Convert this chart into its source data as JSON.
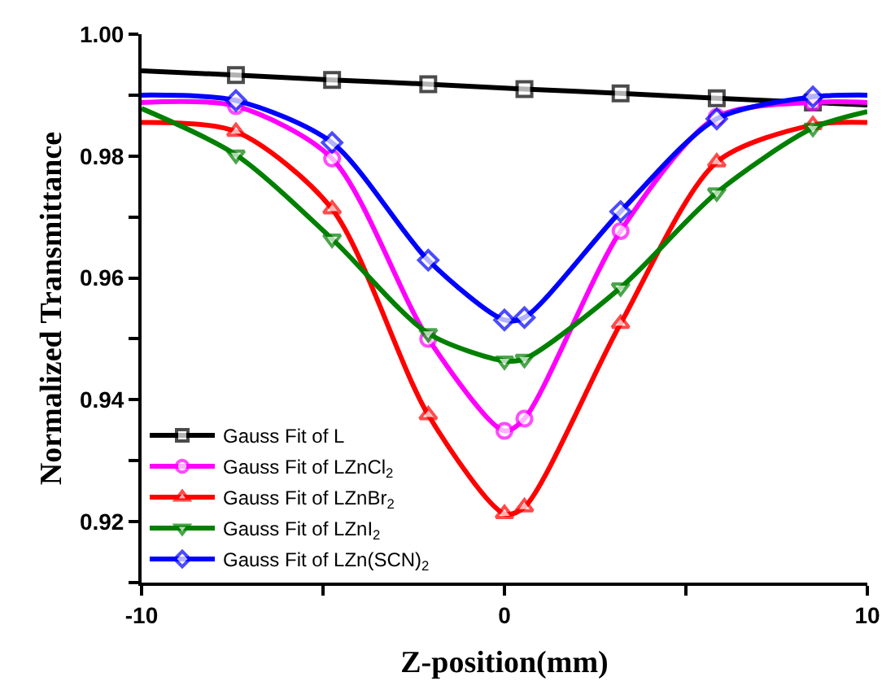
{
  "chart_data": {
    "type": "line",
    "xlabel": "Z-position(mm)",
    "ylabel": "Normalized Transmittance",
    "xlim": [
      -10,
      10
    ],
    "xticks": [
      -10,
      {
        "value": -5,
        "label": null
      },
      0,
      {
        "value": 5,
        "label": null
      },
      10
    ],
    "ylim": [
      0.91,
      1.0
    ],
    "yticks": [
      {
        "value": 0.91,
        "label": null
      },
      0.92,
      {
        "value": 0.93,
        "label": null
      },
      0.94,
      {
        "value": 0.95,
        "label": null
      },
      0.96,
      {
        "value": 0.97,
        "label": null
      },
      0.98,
      {
        "value": 0.99,
        "label": null
      },
      {
        "value": 1.0,
        "label": "1.00"
      }
    ],
    "legend": "bottom left",
    "series": [
      {
        "name": "Gauss Fit of L",
        "color": "#000000",
        "marker": "square",
        "x": [
          -10,
          -7.4,
          -4.75,
          -2.1,
          0.55,
          3.2,
          5.85,
          8.5,
          10
        ],
        "values": [
          0.994,
          0.9933,
          0.9925,
          0.9918,
          0.991,
          0.9903,
          0.9895,
          0.9888,
          0.9884
        ]
      },
      {
        "name": "Gauss Fit of LZnCl$_{2}$",
        "color": "#ff00ff",
        "marker": "circle",
        "x": [
          -10,
          -7.4,
          -4.75,
          -2.1,
          0,
          0.55,
          3.2,
          5.85,
          8.5,
          10
        ],
        "values": [
          0.9888,
          0.9882,
          0.9796,
          0.95,
          0.9349,
          0.9369,
          0.9677,
          0.9864,
          0.9888,
          0.9888
        ]
      },
      {
        "name": "Gauss Fit of LZnBr$_{2}$",
        "color": "#ff0000",
        "marker": "triangle",
        "x": [
          -10,
          -7.4,
          -4.75,
          -2.1,
          0,
          0.55,
          3.2,
          5.85,
          8.5,
          10
        ],
        "values": [
          0.9855,
          0.984,
          0.9713,
          0.9375,
          0.9213,
          0.9224,
          0.9525,
          0.979,
          0.9851,
          0.9855
        ]
      },
      {
        "name": "Gauss Fit of LZnI$_{2}$",
        "color": "#008000",
        "marker": "triangle-down",
        "x": [
          -10,
          -7.4,
          -4.75,
          -2.1,
          0,
          0.55,
          3.2,
          5.85,
          8.5,
          10
        ],
        "values": [
          0.9878,
          0.9802,
          0.9664,
          0.9509,
          0.9464,
          0.9467,
          0.9584,
          0.974,
          0.9846,
          0.9873
        ]
      },
      {
        "name": "Gauss Fit of LZn(SCN)$_{2}$",
        "color": "#0000ff",
        "marker": "diamond",
        "x": [
          -10,
          -7.4,
          -4.75,
          -2.1,
          0,
          0.55,
          3.2,
          5.85,
          8.5,
          10
        ],
        "values": [
          0.99,
          0.9891,
          0.9822,
          0.9629,
          0.9531,
          0.9535,
          0.9709,
          0.9861,
          0.9897,
          0.99
        ]
      }
    ]
  }
}
